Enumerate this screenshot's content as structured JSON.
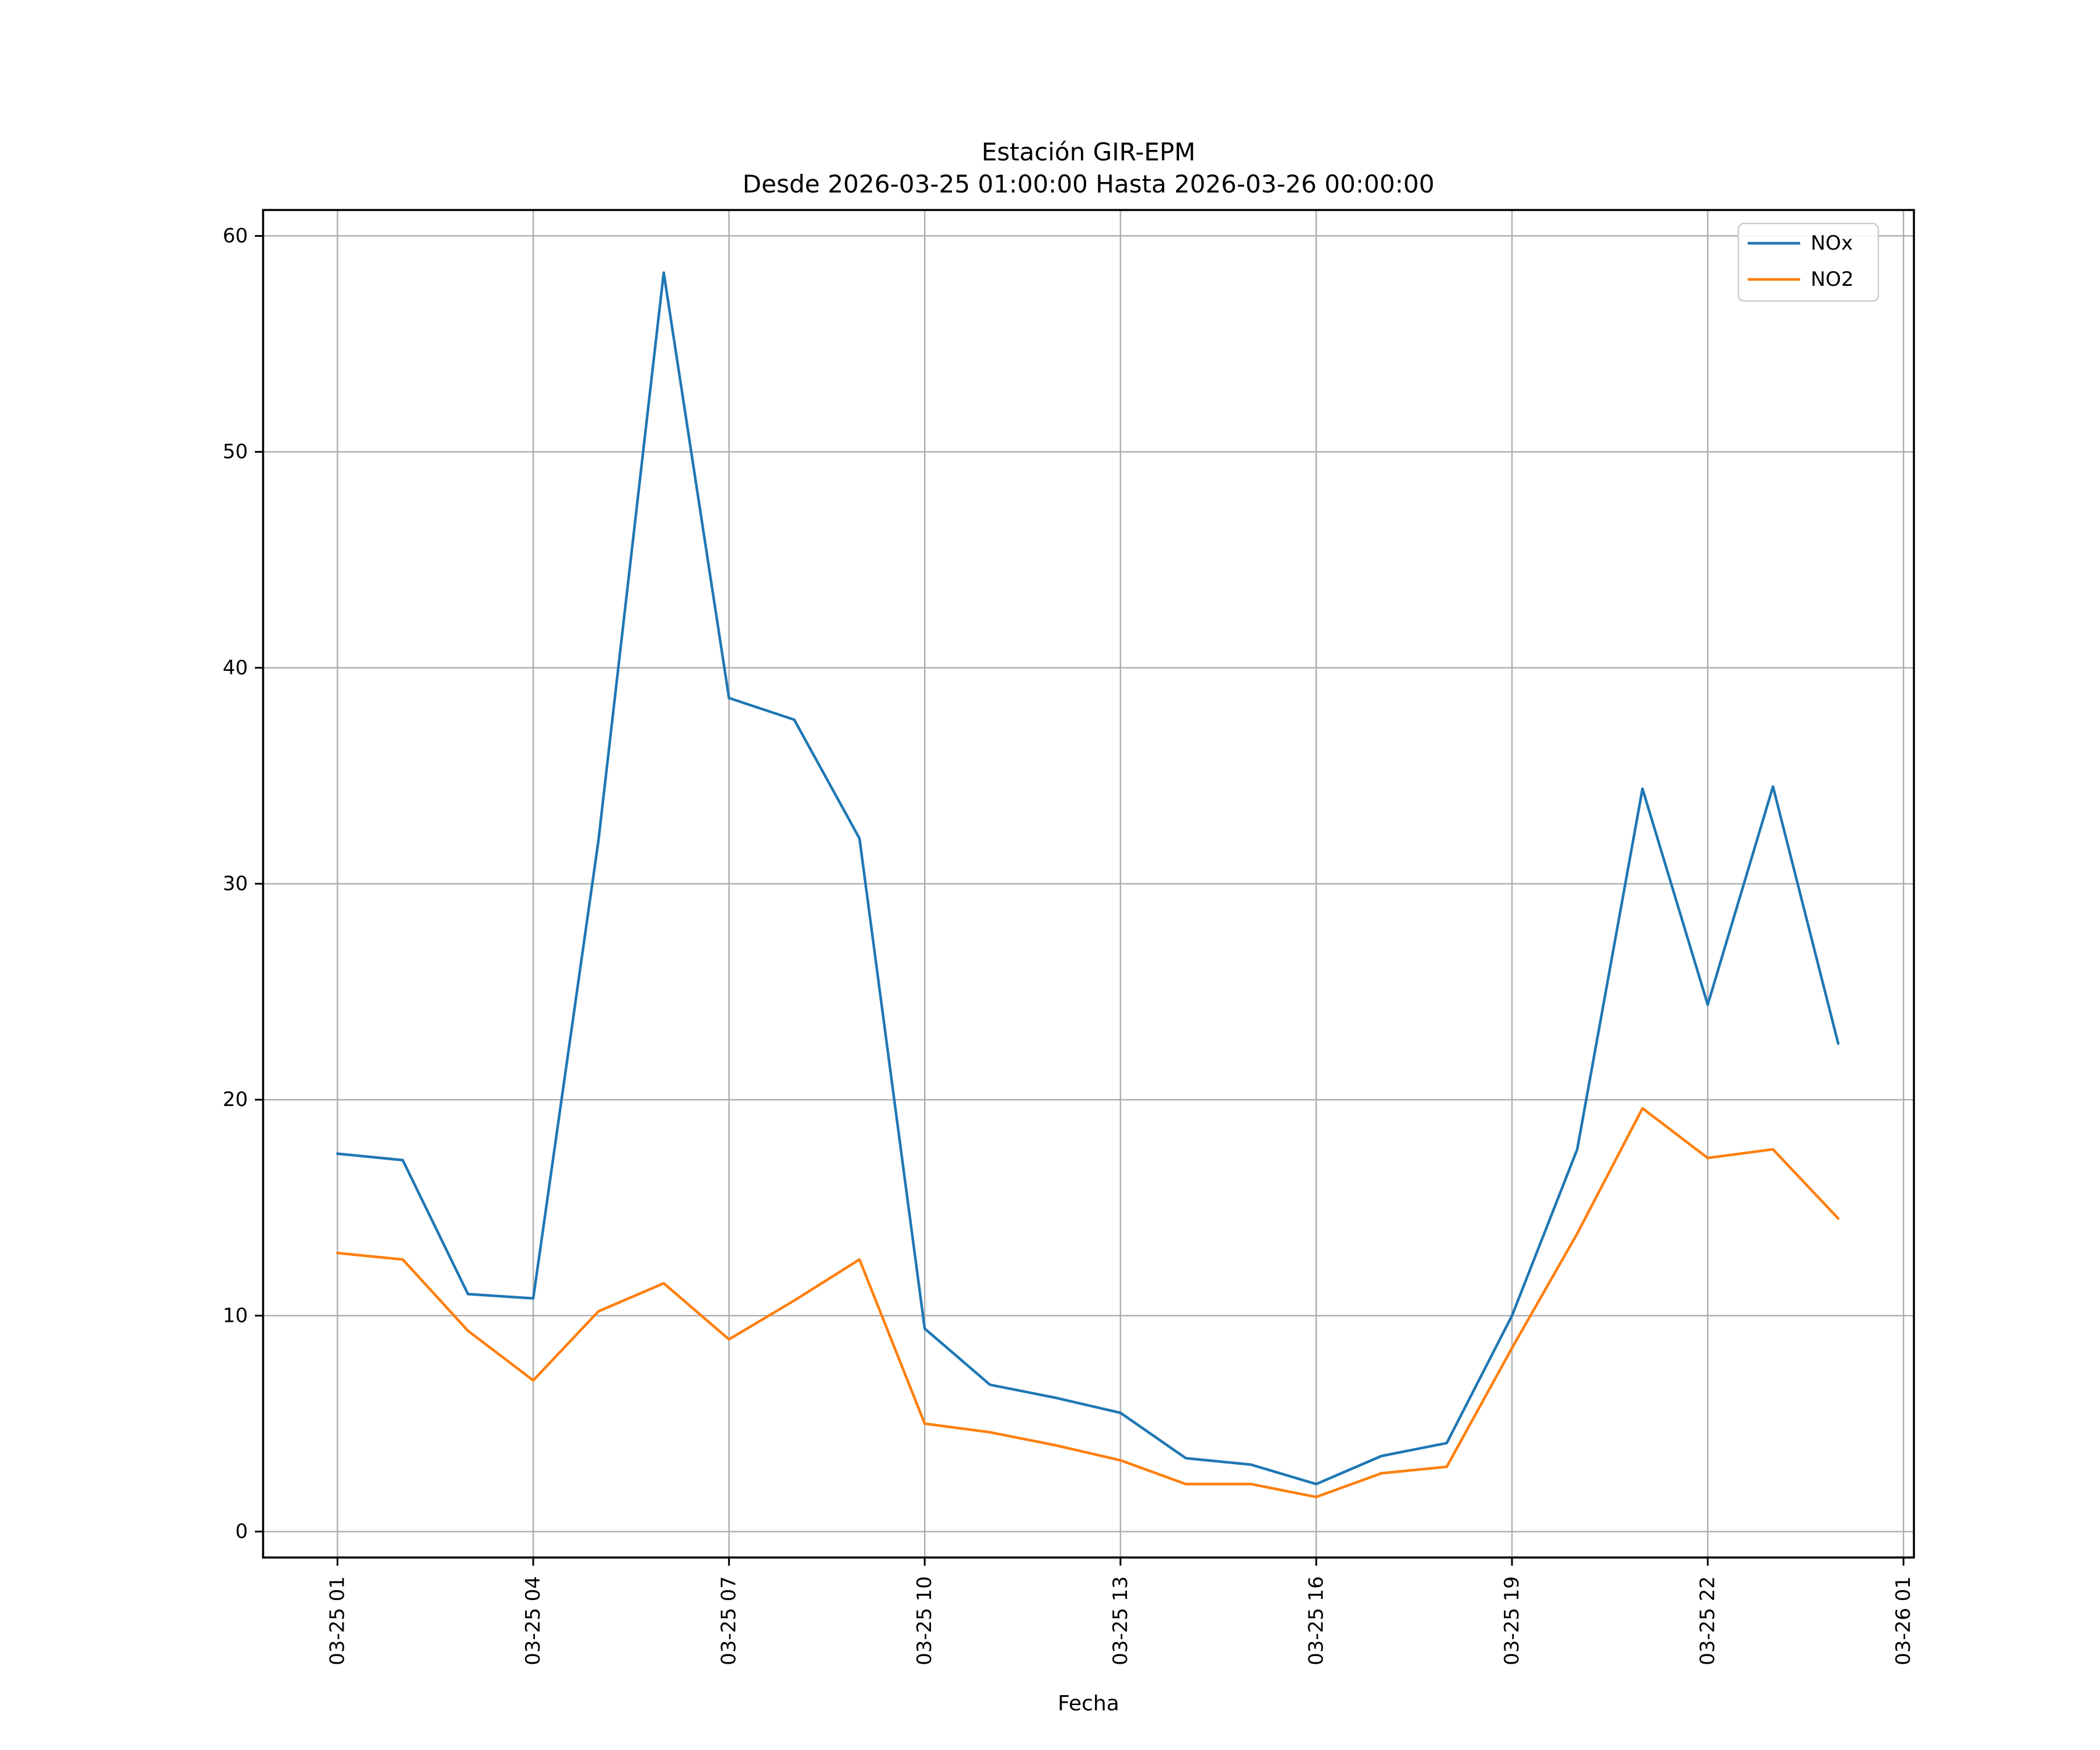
{
  "window": {
    "background": "#ffffff"
  },
  "chart_data": {
    "type": "line",
    "title": "Estación GIR-EPM",
    "subtitle": "Desde 2026-03-25 01:00:00 Hasta 2026-03-26 00:00:00",
    "xlabel": "Fecha",
    "ylabel": "",
    "grid": true,
    "legend_position": "upper right",
    "x_tick_labels": [
      "03-25 01",
      "03-25 04",
      "03-25 07",
      "03-25 10",
      "03-25 13",
      "03-25 16",
      "03-25 19",
      "03-25 22",
      "03-26 01"
    ],
    "x_tick_hours": [
      0,
      3,
      6,
      9,
      12,
      15,
      18,
      21,
      24
    ],
    "y_ticks": [
      0,
      10,
      20,
      30,
      40,
      50,
      60
    ],
    "xlim_hours": [
      -1.14,
      24.16
    ],
    "ylim": [
      -1.2,
      61.2
    ],
    "x_hours": [
      0,
      1,
      2,
      3,
      4,
      5,
      6,
      7,
      8,
      9,
      10,
      11,
      12,
      13,
      14,
      15,
      16,
      17,
      18,
      19,
      20,
      21,
      22,
      23
    ],
    "series": [
      {
        "name": "NOx",
        "color": "#1f77b4",
        "values": [
          17.5,
          17.2,
          11.0,
          10.8,
          32.0,
          58.3,
          38.6,
          37.6,
          32.1,
          9.4,
          6.8,
          6.2,
          5.5,
          3.4,
          3.1,
          2.2,
          3.5,
          4.1,
          10.0,
          17.7,
          34.4,
          24.4,
          34.5,
          22.6
        ]
      },
      {
        "name": "NO2",
        "color": "#ff7f0e",
        "values": [
          12.9,
          12.6,
          9.3,
          7.0,
          10.2,
          11.5,
          8.9,
          10.7,
          12.6,
          5.0,
          4.6,
          4.0,
          3.3,
          2.2,
          2.2,
          1.6,
          2.7,
          3.0,
          8.5,
          13.8,
          19.6,
          17.3,
          17.7,
          14.5
        ]
      }
    ],
    "colors": {
      "grid": "#b0b0b0",
      "spine": "#000000",
      "legend_border": "#cccccc",
      "text": "#000000"
    }
  }
}
